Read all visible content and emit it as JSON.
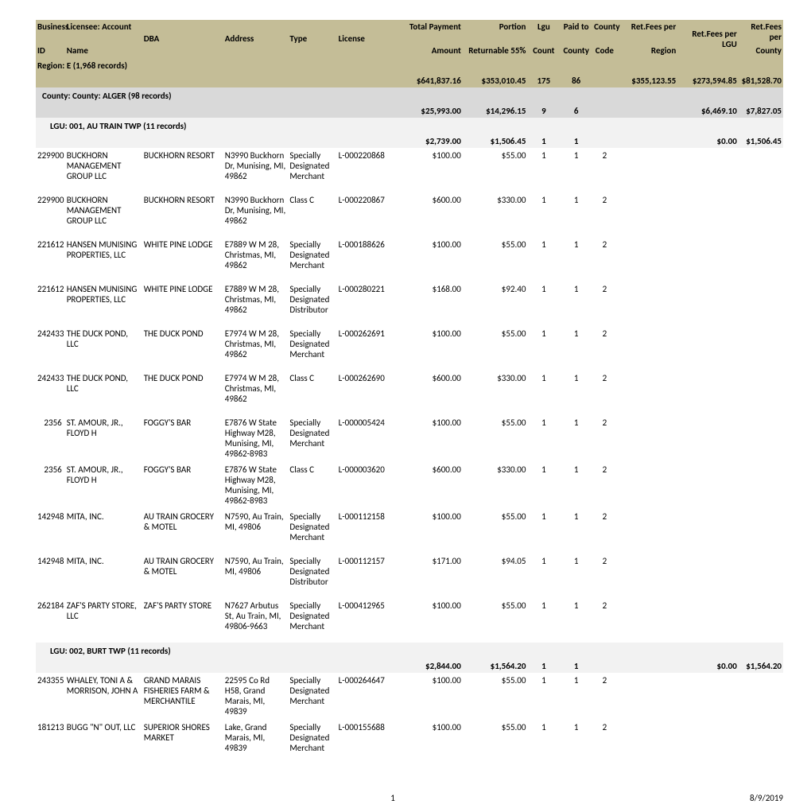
{
  "columns": [
    {
      "l1": "Business",
      "l2": "ID"
    },
    {
      "l1": "Licensee: Account",
      "l2": "Name"
    },
    {
      "l1": "DBA",
      "l2": ""
    },
    {
      "l1": "Address",
      "l2": ""
    },
    {
      "l1": "Type",
      "l2": ""
    },
    {
      "l1": "License",
      "l2": ""
    },
    {
      "l1": "Total Payment",
      "l2": "Amount"
    },
    {
      "l1": "Portion",
      "l2": "Returnable 55%"
    },
    {
      "l1": "Lgu",
      "l2": "Count"
    },
    {
      "l1": "Paid to",
      "l2": "County"
    },
    {
      "l1": "County",
      "l2": "Code"
    },
    {
      "l1": "Ret.Fees per",
      "l2": "Region"
    },
    {
      "l1": "Ret.Fees per LGU",
      "l2": ""
    },
    {
      "l1": "Ret.Fees per",
      "l2": "County"
    }
  ],
  "region": {
    "label": "Region:",
    "value": "E",
    "count_text": "(1,968 records)",
    "totals": {
      "total": "$641,837.16",
      "portion": "$353,010.45",
      "lgu": "175",
      "paid": "86",
      "perRegion": "$355,123.55",
      "perLGU": "$273,594.85",
      "perCounty": "$81,528.70"
    }
  },
  "county": {
    "label": "County:",
    "value": "County: ALGER",
    "count_text": "(98 records)",
    "totals": {
      "total": "$25,993.00",
      "portion": "$14,296.15",
      "lgu": "9",
      "paid": "6",
      "perLGU": "$6,469.10",
      "perCounty": "$7,827.05"
    }
  },
  "lguGroups": [
    {
      "label": "LGU:",
      "value": "001, AU TRAIN TWP",
      "count_text": "(11 records)",
      "totals": {
        "total": "$2,739.00",
        "portion": "$1,506.45",
        "lgu": "1",
        "paid": "1",
        "perLGU": "$0.00",
        "perCounty": "$1,506.45"
      },
      "rows": [
        {
          "id": "229900",
          "name": "BUCKHORN MANAGEMENT GROUP LLC",
          "dba": "BUCKHORN RESORT",
          "addr": "N3990 Buckhorn Dr, Munising, MI, 49862",
          "type": "Specially Designated Merchant",
          "lic": "L-000220868",
          "total": "$100.00",
          "portion": "$55.00",
          "lgu": "1",
          "paid": "1",
          "cc": "2"
        },
        {
          "id": "229900",
          "name": "BUCKHORN MANAGEMENT GROUP LLC",
          "dba": "BUCKHORN RESORT",
          "addr": "N3990 Buckhorn Dr, Munising, MI, 49862",
          "type": "Class C",
          "lic": "L-000220867",
          "total": "$600.00",
          "portion": "$330.00",
          "lgu": "1",
          "paid": "1",
          "cc": "2"
        },
        {
          "id": "221612",
          "name": "HANSEN MUNISING PROPERTIES, LLC",
          "dba": "WHITE PINE LODGE",
          "addr": "E7889 W M 28, Christmas, MI, 49862",
          "type": "Specially Designated Merchant",
          "lic": "L-000188626",
          "total": "$100.00",
          "portion": "$55.00",
          "lgu": "1",
          "paid": "1",
          "cc": "2"
        },
        {
          "id": "221612",
          "name": "HANSEN MUNISING PROPERTIES, LLC",
          "dba": "WHITE PINE LODGE",
          "addr": "E7889 W M 28, Christmas, MI, 49862",
          "type": "Specially Designated Distributor",
          "lic": "L-000280221",
          "total": "$168.00",
          "portion": "$92.40",
          "lgu": "1",
          "paid": "1",
          "cc": "2"
        },
        {
          "id": "242433",
          "name": "THE DUCK POND, LLC",
          "dba": "THE DUCK POND",
          "addr": "E7974 W M 28, Christmas, MI, 49862",
          "type": "Specially Designated Merchant",
          "lic": "L-000262691",
          "total": "$100.00",
          "portion": "$55.00",
          "lgu": "1",
          "paid": "1",
          "cc": "2"
        },
        {
          "id": "242433",
          "name": "THE DUCK POND, LLC",
          "dba": "THE DUCK POND",
          "addr": "E7974 W M 28, Christmas, MI, 49862",
          "type": "Class C",
          "lic": "L-000262690",
          "total": "$600.00",
          "portion": "$330.00",
          "lgu": "1",
          "paid": "1",
          "cc": "2"
        },
        {
          "id": "2356",
          "name": "ST. AMOUR, JR., FLOYD H",
          "dba": "FOGGY'S BAR",
          "addr": "E7876 W State Highway M28, Munising, MI, 49862-8983",
          "type": "Specially Designated Merchant",
          "lic": "L-000005424",
          "total": "$100.00",
          "portion": "$55.00",
          "lgu": "1",
          "paid": "1",
          "cc": "2"
        },
        {
          "id": "2356",
          "name": "ST. AMOUR, JR., FLOYD H",
          "dba": "FOGGY'S BAR",
          "addr": "E7876 W State Highway M28, Munising, MI, 49862-8983",
          "type": "Class C",
          "lic": "L-000003620",
          "total": "$600.00",
          "portion": "$330.00",
          "lgu": "1",
          "paid": "1",
          "cc": "2"
        },
        {
          "id": "142948",
          "name": "MITA, INC.",
          "dba": "AU TRAIN GROCERY & MOTEL",
          "addr": "N7590, Au Train, MI, 49806",
          "type": "Specially Designated Merchant",
          "lic": "L-000112158",
          "total": "$100.00",
          "portion": "$55.00",
          "lgu": "1",
          "paid": "1",
          "cc": "2"
        },
        {
          "id": "142948",
          "name": "MITA, INC.",
          "dba": "AU TRAIN GROCERY & MOTEL",
          "addr": "N7590, Au Train, MI, 49806",
          "type": "Specially Designated Distributor",
          "lic": "L-000112157",
          "total": "$171.00",
          "portion": "$94.05",
          "lgu": "1",
          "paid": "1",
          "cc": "2"
        },
        {
          "id": "262184",
          "name": "ZAF'S PARTY STORE, LLC",
          "dba": "ZAF'S PARTY STORE",
          "addr": "N7627 Arbutus St, Au Train, MI, 49806-9663",
          "type": "Specially Designated Merchant",
          "lic": "L-000412965",
          "total": "$100.00",
          "portion": "$55.00",
          "lgu": "1",
          "paid": "1",
          "cc": "2"
        }
      ]
    },
    {
      "label": "LGU:",
      "value": "002, BURT TWP",
      "count_text": "(11 records)",
      "totals": {
        "total": "$2,844.00",
        "portion": "$1,564.20",
        "lgu": "1",
        "paid": "1",
        "perLGU": "$0.00",
        "perCounty": "$1,564.20"
      },
      "rows": [
        {
          "id": "243355",
          "name": "WHALEY, TONI A & MORRISON, JOHN A",
          "dba": "GRAND MARAIS FISHERIES FARM & MERCHANTILE",
          "addr": "22595 Co Rd H58, Grand Marais, MI, 49839",
          "type": "Specially Designated Merchant",
          "lic": "L-000264647",
          "total": "$100.00",
          "portion": "$55.00",
          "lgu": "1",
          "paid": "1",
          "cc": "2"
        },
        {
          "id": "181213",
          "name": "BUGG \"N\" OUT, LLC",
          "dba": "SUPERIOR SHORES MARKET",
          "addr": "Lake, Grand Marais, MI, 49839",
          "type": "Specially Designated Merchant",
          "lic": "L-000155688",
          "total": "$100.00",
          "portion": "$55.00",
          "lgu": "1",
          "paid": "1",
          "cc": "2"
        }
      ]
    }
  ],
  "footer": {
    "page": "1",
    "date": "8/9/2019"
  }
}
